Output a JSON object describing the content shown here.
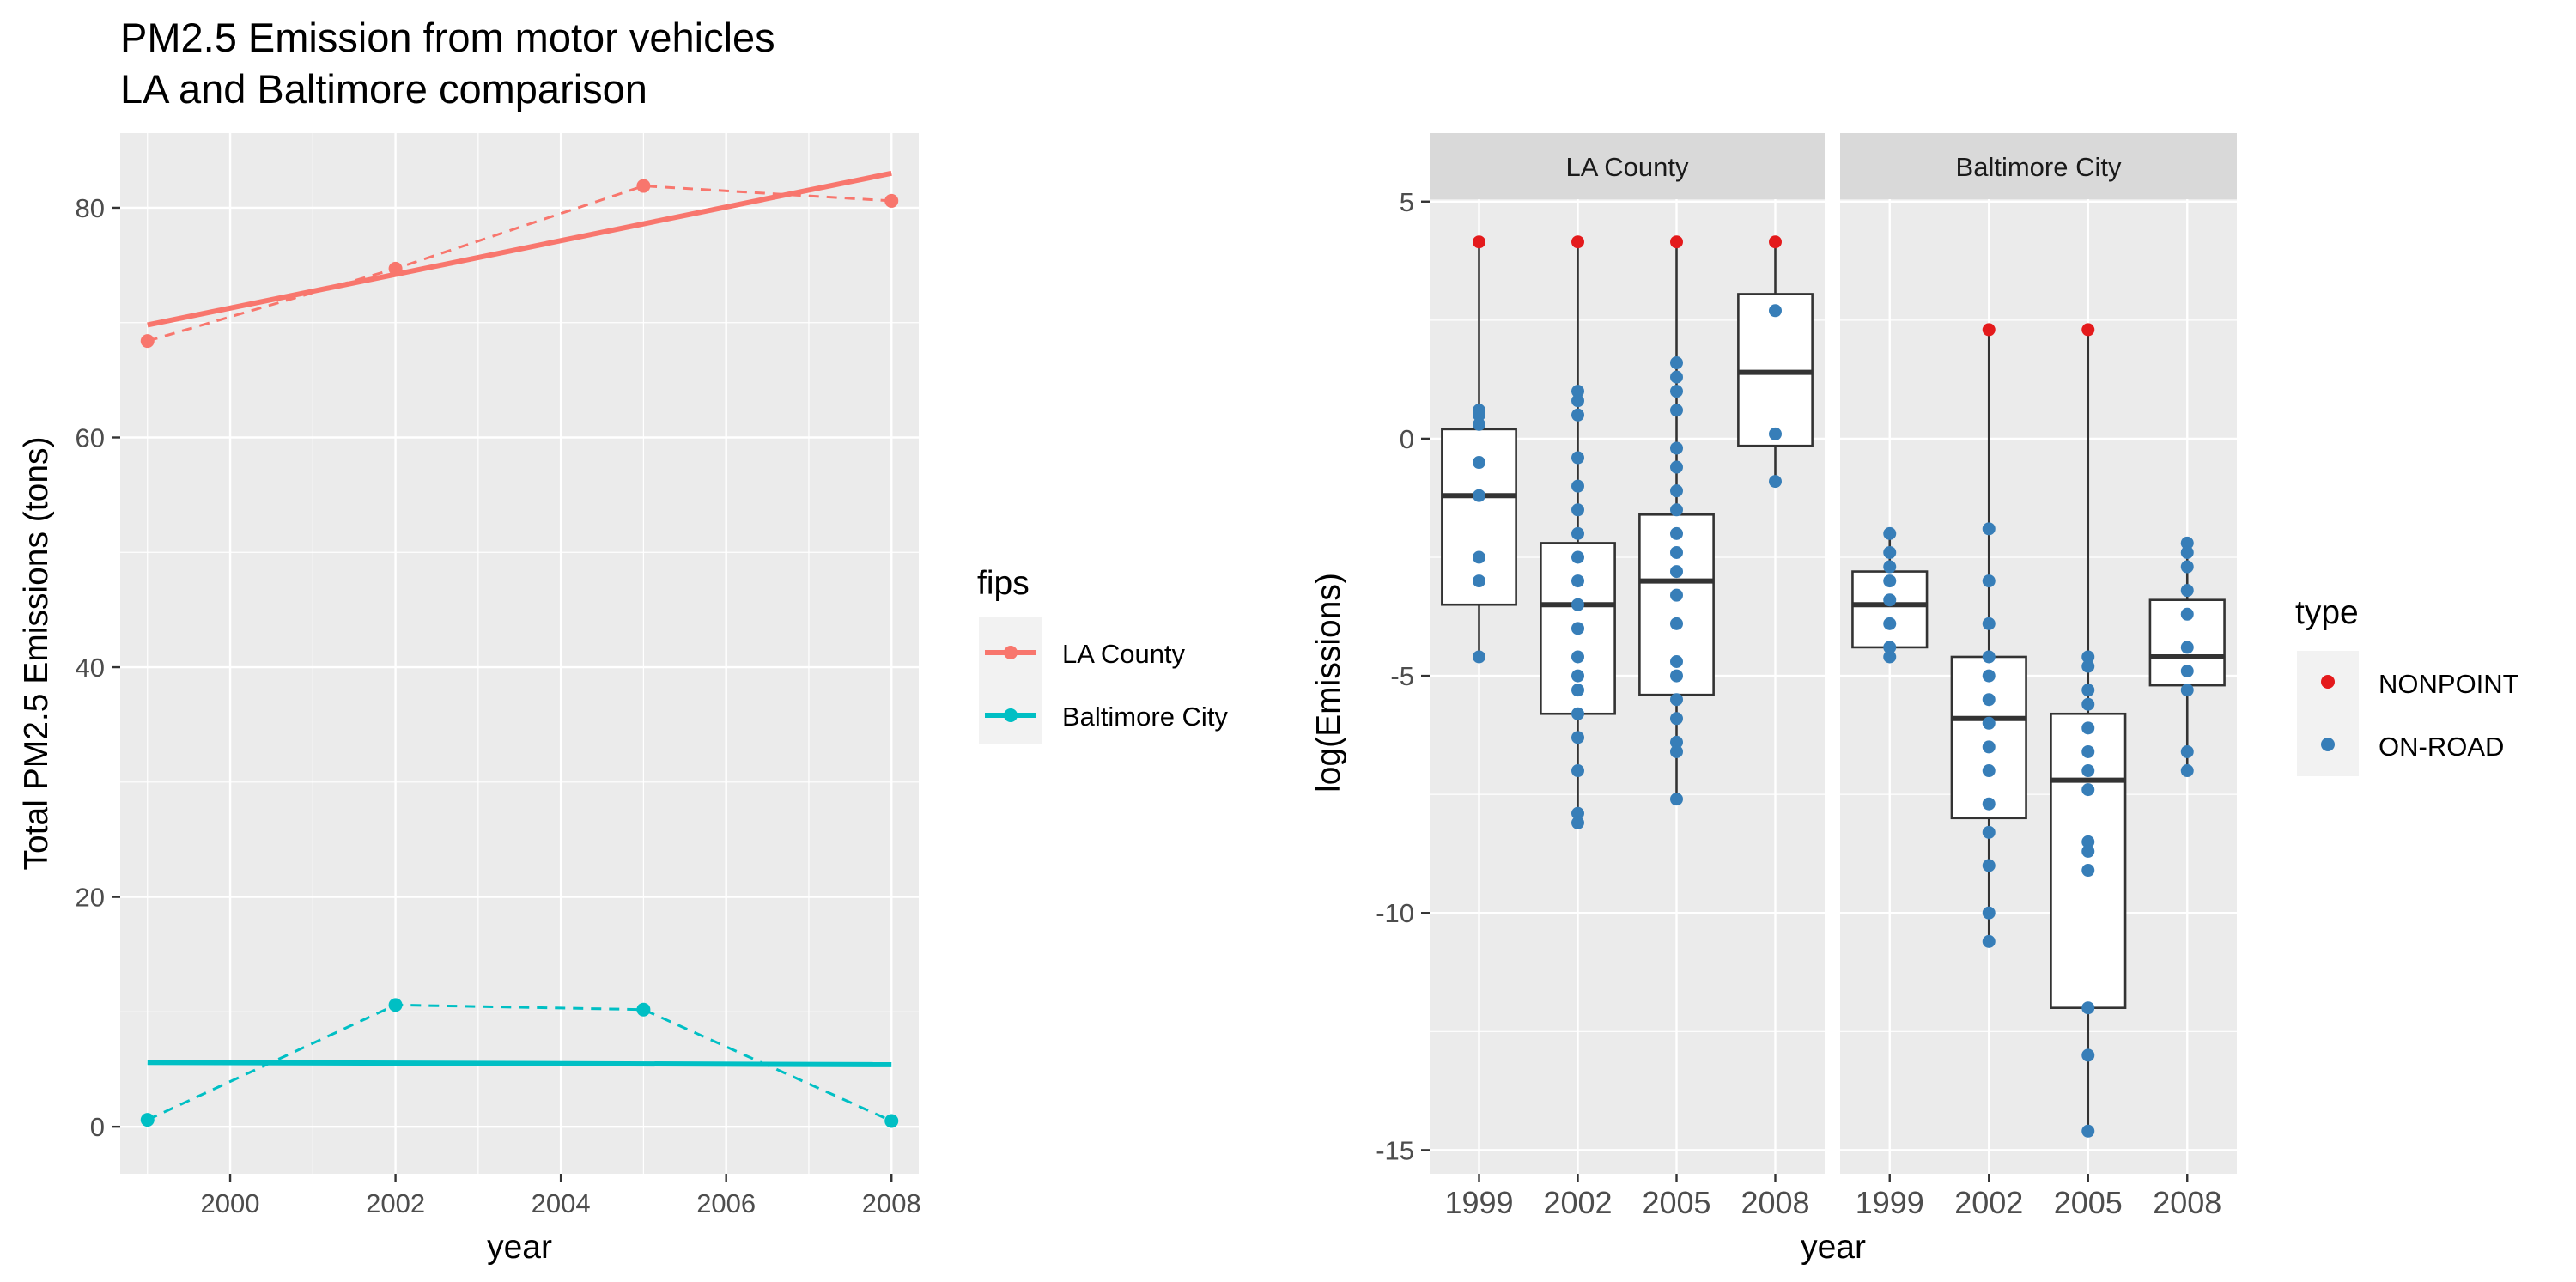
{
  "figure": {
    "title_line1": "PM2.5 Emission from motor vehicles",
    "title_line2": "LA and Baltimore comparison"
  },
  "chart_data": [
    {
      "type": "line",
      "title": "PM2.5 Emission from motor vehicles\nLA and Baltimore comparison",
      "xlabel": "year",
      "ylabel": "Total PM2.5 Emissions (tons)",
      "xlim": [
        1998.67,
        2008.33
      ],
      "ylim": [
        -4.1,
        86.5
      ],
      "xticks": [
        2000,
        2002,
        2004,
        2006,
        2008
      ],
      "yticks": [
        0,
        20,
        40,
        60,
        80
      ],
      "grid": true,
      "legend": {
        "title": "fips",
        "placement": "right"
      },
      "series": [
        {
          "name": "LA County",
          "color": "#F8766D",
          "x": [
            1999,
            2002,
            2005,
            2008
          ],
          "values": [
            68.4,
            74.7,
            81.9,
            80.6
          ],
          "trend": {
            "x": [
              1999,
              2008
            ],
            "values": [
              69.8,
              83.0
            ]
          }
        },
        {
          "name": "Baltimore City",
          "color": "#00BFC4",
          "x": [
            1999,
            2002,
            2005,
            2008
          ],
          "values": [
            0.6,
            10.6,
            10.2,
            0.5
          ],
          "trend": {
            "x": [
              1999,
              2008
            ],
            "values": [
              5.6,
              5.4
            ]
          }
        }
      ]
    },
    {
      "type": "boxplot",
      "xlabel": "year",
      "ylabel": "log(Emissions)",
      "ylim": [
        -15.5,
        5.05
      ],
      "yticks": [
        5,
        0,
        -5,
        -10,
        -15
      ],
      "categories": [
        "1999",
        "2002",
        "2005",
        "2008"
      ],
      "grid": true,
      "legend": {
        "title": "type",
        "placement": "right",
        "entries": [
          {
            "label": "NONPOINT",
            "color": "#E41A1C"
          },
          {
            "label": "ON-ROAD",
            "color": "#377EB8"
          }
        ]
      },
      "facets": [
        {
          "name": "LA County",
          "boxes": [
            {
              "category": "1999",
              "min": -4.6,
              "q1": -3.5,
              "median": -1.2,
              "q3": 0.2,
              "max": 4.15,
              "points": [
                {
                  "y": 4.15,
                  "type": "NONPOINT"
                },
                {
                  "y": 0.6,
                  "type": "ON-ROAD"
                },
                {
                  "y": 0.5,
                  "type": "ON-ROAD"
                },
                {
                  "y": 0.3,
                  "type": "ON-ROAD"
                },
                {
                  "y": -0.5,
                  "type": "ON-ROAD"
                },
                {
                  "y": -1.2,
                  "type": "ON-ROAD"
                },
                {
                  "y": -2.5,
                  "type": "ON-ROAD"
                },
                {
                  "y": -3.0,
                  "type": "ON-ROAD"
                },
                {
                  "y": -4.6,
                  "type": "ON-ROAD"
                }
              ]
            },
            {
              "category": "2002",
              "min": -8.1,
              "q1": -5.8,
              "median": -3.5,
              "q3": -2.2,
              "max": 4.15,
              "points": [
                {
                  "y": 4.15,
                  "type": "NONPOINT"
                },
                {
                  "y": 1.0,
                  "type": "ON-ROAD"
                },
                {
                  "y": 0.8,
                  "type": "ON-ROAD"
                },
                {
                  "y": 0.5,
                  "type": "ON-ROAD"
                },
                {
                  "y": -0.4,
                  "type": "ON-ROAD"
                },
                {
                  "y": -1.0,
                  "type": "ON-ROAD"
                },
                {
                  "y": -1.5,
                  "type": "ON-ROAD"
                },
                {
                  "y": -2.0,
                  "type": "ON-ROAD"
                },
                {
                  "y": -2.5,
                  "type": "ON-ROAD"
                },
                {
                  "y": -3.0,
                  "type": "ON-ROAD"
                },
                {
                  "y": -3.5,
                  "type": "ON-ROAD"
                },
                {
                  "y": -4.0,
                  "type": "ON-ROAD"
                },
                {
                  "y": -4.6,
                  "type": "ON-ROAD"
                },
                {
                  "y": -5.0,
                  "type": "ON-ROAD"
                },
                {
                  "y": -5.3,
                  "type": "ON-ROAD"
                },
                {
                  "y": -5.8,
                  "type": "ON-ROAD"
                },
                {
                  "y": -6.3,
                  "type": "ON-ROAD"
                },
                {
                  "y": -7.0,
                  "type": "ON-ROAD"
                },
                {
                  "y": -7.9,
                  "type": "ON-ROAD"
                },
                {
                  "y": -8.1,
                  "type": "ON-ROAD"
                }
              ]
            },
            {
              "category": "2005",
              "min": -7.6,
              "q1": -5.4,
              "median": -3.0,
              "q3": -1.6,
              "max": 4.15,
              "points": [
                {
                  "y": 4.15,
                  "type": "NONPOINT"
                },
                {
                  "y": 1.6,
                  "type": "ON-ROAD"
                },
                {
                  "y": 1.3,
                  "type": "ON-ROAD"
                },
                {
                  "y": 1.0,
                  "type": "ON-ROAD"
                },
                {
                  "y": 0.6,
                  "type": "ON-ROAD"
                },
                {
                  "y": -0.2,
                  "type": "ON-ROAD"
                },
                {
                  "y": -0.6,
                  "type": "ON-ROAD"
                },
                {
                  "y": -1.1,
                  "type": "ON-ROAD"
                },
                {
                  "y": -1.5,
                  "type": "ON-ROAD"
                },
                {
                  "y": -2.0,
                  "type": "ON-ROAD"
                },
                {
                  "y": -2.4,
                  "type": "ON-ROAD"
                },
                {
                  "y": -2.8,
                  "type": "ON-ROAD"
                },
                {
                  "y": -3.3,
                  "type": "ON-ROAD"
                },
                {
                  "y": -3.9,
                  "type": "ON-ROAD"
                },
                {
                  "y": -4.7,
                  "type": "ON-ROAD"
                },
                {
                  "y": -5.0,
                  "type": "ON-ROAD"
                },
                {
                  "y": -5.5,
                  "type": "ON-ROAD"
                },
                {
                  "y": -5.9,
                  "type": "ON-ROAD"
                },
                {
                  "y": -6.4,
                  "type": "ON-ROAD"
                },
                {
                  "y": -6.6,
                  "type": "ON-ROAD"
                },
                {
                  "y": -7.6,
                  "type": "ON-ROAD"
                }
              ]
            },
            {
              "category": "2008",
              "min": -0.9,
              "q1": -0.15,
              "median": 1.4,
              "q3": 3.05,
              "max": 4.15,
              "points": [
                {
                  "y": 4.15,
                  "type": "NONPOINT"
                },
                {
                  "y": 2.7,
                  "type": "ON-ROAD"
                },
                {
                  "y": 0.1,
                  "type": "ON-ROAD"
                },
                {
                  "y": -0.9,
                  "type": "ON-ROAD"
                }
              ]
            }
          ]
        },
        {
          "name": "Baltimore City",
          "boxes": [
            {
              "category": "1999",
              "min": -4.6,
              "q1": -4.4,
              "median": -3.5,
              "q3": -2.8,
              "max": -2.0,
              "points": [
                {
                  "y": -2.0,
                  "type": "ON-ROAD"
                },
                {
                  "y": -2.4,
                  "type": "ON-ROAD"
                },
                {
                  "y": -2.7,
                  "type": "ON-ROAD"
                },
                {
                  "y": -3.0,
                  "type": "ON-ROAD"
                },
                {
                  "y": -3.4,
                  "type": "ON-ROAD"
                },
                {
                  "y": -3.9,
                  "type": "ON-ROAD"
                },
                {
                  "y": -4.4,
                  "type": "ON-ROAD"
                },
                {
                  "y": -4.6,
                  "type": "ON-ROAD"
                }
              ]
            },
            {
              "category": "2002",
              "min": -10.6,
              "q1": -8.0,
              "median": -5.9,
              "q3": -4.6,
              "max": 2.3,
              "points": [
                {
                  "y": 2.3,
                  "type": "NONPOINT"
                },
                {
                  "y": -1.9,
                  "type": "ON-ROAD"
                },
                {
                  "y": -3.0,
                  "type": "ON-ROAD"
                },
                {
                  "y": -3.9,
                  "type": "ON-ROAD"
                },
                {
                  "y": -4.6,
                  "type": "ON-ROAD"
                },
                {
                  "y": -5.0,
                  "type": "ON-ROAD"
                },
                {
                  "y": -5.5,
                  "type": "ON-ROAD"
                },
                {
                  "y": -6.0,
                  "type": "ON-ROAD"
                },
                {
                  "y": -6.5,
                  "type": "ON-ROAD"
                },
                {
                  "y": -7.0,
                  "type": "ON-ROAD"
                },
                {
                  "y": -7.7,
                  "type": "ON-ROAD"
                },
                {
                  "y": -8.3,
                  "type": "ON-ROAD"
                },
                {
                  "y": -9.0,
                  "type": "ON-ROAD"
                },
                {
                  "y": -10.0,
                  "type": "ON-ROAD"
                },
                {
                  "y": -10.6,
                  "type": "ON-ROAD"
                }
              ]
            },
            {
              "category": "2005",
              "min": -14.6,
              "q1": -12.0,
              "median": -7.2,
              "q3": -5.8,
              "max": 2.3,
              "points": [
                {
                  "y": 2.3,
                  "type": "NONPOINT"
                },
                {
                  "y": -4.6,
                  "type": "ON-ROAD"
                },
                {
                  "y": -4.8,
                  "type": "ON-ROAD"
                },
                {
                  "y": -5.3,
                  "type": "ON-ROAD"
                },
                {
                  "y": -5.6,
                  "type": "ON-ROAD"
                },
                {
                  "y": -6.1,
                  "type": "ON-ROAD"
                },
                {
                  "y": -6.6,
                  "type": "ON-ROAD"
                },
                {
                  "y": -7.0,
                  "type": "ON-ROAD"
                },
                {
                  "y": -7.4,
                  "type": "ON-ROAD"
                },
                {
                  "y": -8.5,
                  "type": "ON-ROAD"
                },
                {
                  "y": -8.7,
                  "type": "ON-ROAD"
                },
                {
                  "y": -9.1,
                  "type": "ON-ROAD"
                },
                {
                  "y": -12.0,
                  "type": "ON-ROAD"
                },
                {
                  "y": -13.0,
                  "type": "ON-ROAD"
                },
                {
                  "y": -14.6,
                  "type": "ON-ROAD"
                }
              ]
            },
            {
              "category": "2008",
              "min": -7.0,
              "q1": -5.2,
              "median": -4.6,
              "q3": -3.4,
              "max": -2.2,
              "points": [
                {
                  "y": -2.2,
                  "type": "ON-ROAD"
                },
                {
                  "y": -2.4,
                  "type": "ON-ROAD"
                },
                {
                  "y": -2.7,
                  "type": "ON-ROAD"
                },
                {
                  "y": -3.2,
                  "type": "ON-ROAD"
                },
                {
                  "y": -3.7,
                  "type": "ON-ROAD"
                },
                {
                  "y": -4.4,
                  "type": "ON-ROAD"
                },
                {
                  "y": -4.9,
                  "type": "ON-ROAD"
                },
                {
                  "y": -5.3,
                  "type": "ON-ROAD"
                },
                {
                  "y": -6.6,
                  "type": "ON-ROAD"
                },
                {
                  "y": -7.0,
                  "type": "ON-ROAD"
                }
              ]
            }
          ]
        }
      ]
    }
  ]
}
